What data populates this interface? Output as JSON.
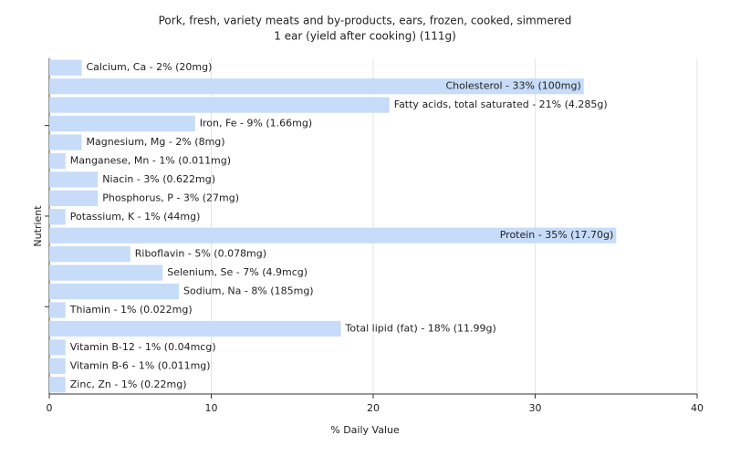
{
  "chart_data": {
    "type": "hbar",
    "title": "Pork, fresh, variety meats and by-products, ears, frozen, cooked, simmered",
    "subtitle": "1 ear (yield after cooking) (111g)",
    "x_label": "% Daily Value",
    "y_label": "Nutrient",
    "categories": [
      "Calcium, Ca - 2% (20mg)",
      "Cholesterol - 33% (100mg)",
      "Fatty acids, total saturated - 21% (4.285g)",
      "Iron, Fe - 9% (1.66mg)",
      "Magnesium, Mg - 2% (8mg)",
      "Manganese, Mn - 1% (0.011mg)",
      "Niacin - 3% (0.622mg)",
      "Phosphorus, P - 3% (27mg)",
      "Potassium, K - 1% (44mg)",
      "Protein - 35% (17.70g)",
      "Riboflavin - 5% (0.078mg)",
      "Selenium, Se - 7% (4.9mcg)",
      "Sodium, Na - 8% (185mg)",
      "Thiamin - 1% (0.022mg)",
      "Total lipid (fat) - 18% (11.99g)",
      "Vitamin B-12 - 1% (0.04mcg)",
      "Vitamin B-6 - 1% (0.011mg)",
      "Zinc, Zn - 1% (0.22mg)"
    ],
    "values": [
      2,
      33,
      21,
      9,
      2,
      1,
      3,
      3,
      1,
      35,
      5,
      7,
      8,
      1,
      18,
      1,
      1,
      1
    ],
    "color": "#c6dcf8",
    "xlim": [
      0,
      40
    ],
    "xticks": [
      0,
      10,
      20,
      30,
      40
    ],
    "grid": true
  }
}
